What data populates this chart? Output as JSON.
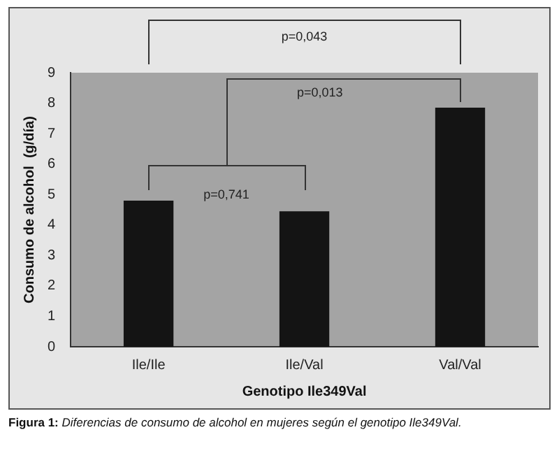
{
  "chart_data": {
    "type": "bar",
    "xlabel": "Genotipo Ile349Val",
    "ylabel": "Consumo de alcohol  (g/día)",
    "categories": [
      "Ile/Ile",
      "Ile/Val",
      "Val/Val"
    ],
    "values": [
      4.8,
      4.45,
      7.85
    ],
    "color": "#141414",
    "ylim": [
      0,
      9
    ],
    "yticks": [
      0,
      1,
      2,
      3,
      4,
      5,
      6,
      7,
      8,
      9
    ],
    "grid": false,
    "legend": false,
    "annotations": [
      "p=0,043",
      "p=0,013",
      "p=0,741",
      "Figura 1: Diferencias de consumo de alcohol en mujeres según el genotipo Ile349Val."
    ]
  }
}
